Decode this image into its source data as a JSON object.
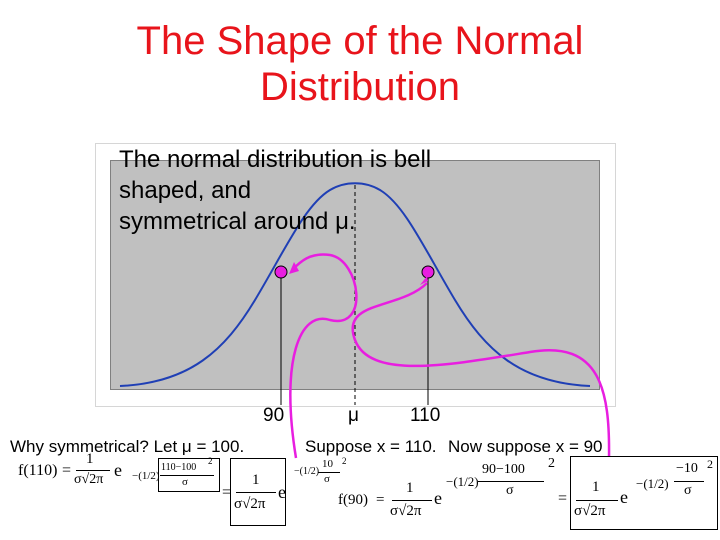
{
  "title": {
    "line1": "The Shape of the Normal",
    "line2": "Distribution"
  },
  "description": {
    "line1": "The normal distribution is bell",
    "line2": "shaped, and",
    "line3": "symmetrical around μ."
  },
  "axis_labels": {
    "left": "90",
    "center": "μ",
    "right": "110"
  },
  "captions": {
    "why": "Why symmetrical?  Let μ = 100.",
    "suppose_110": "Suppose x = 110.",
    "suppose_90": "Now suppose x = 90"
  },
  "formulas": {
    "f110_lhs": "f(110)",
    "f110_num": "110−100",
    "f90_lhs": "f(90)",
    "f90_num": "90−100",
    "neg10": "−10",
    "half": "−(1/2)",
    "sigma": "σ",
    "one": "1",
    "e": "e",
    "sqrt2pi": "σ√2π",
    "sq": "2",
    "eq": "="
  },
  "colors": {
    "title": "#e8141b",
    "curve": "#1f3fb5",
    "arrow": "#e81ee0",
    "plot_bg": "#c0c0c0",
    "marker": "#e81ee0"
  }
}
